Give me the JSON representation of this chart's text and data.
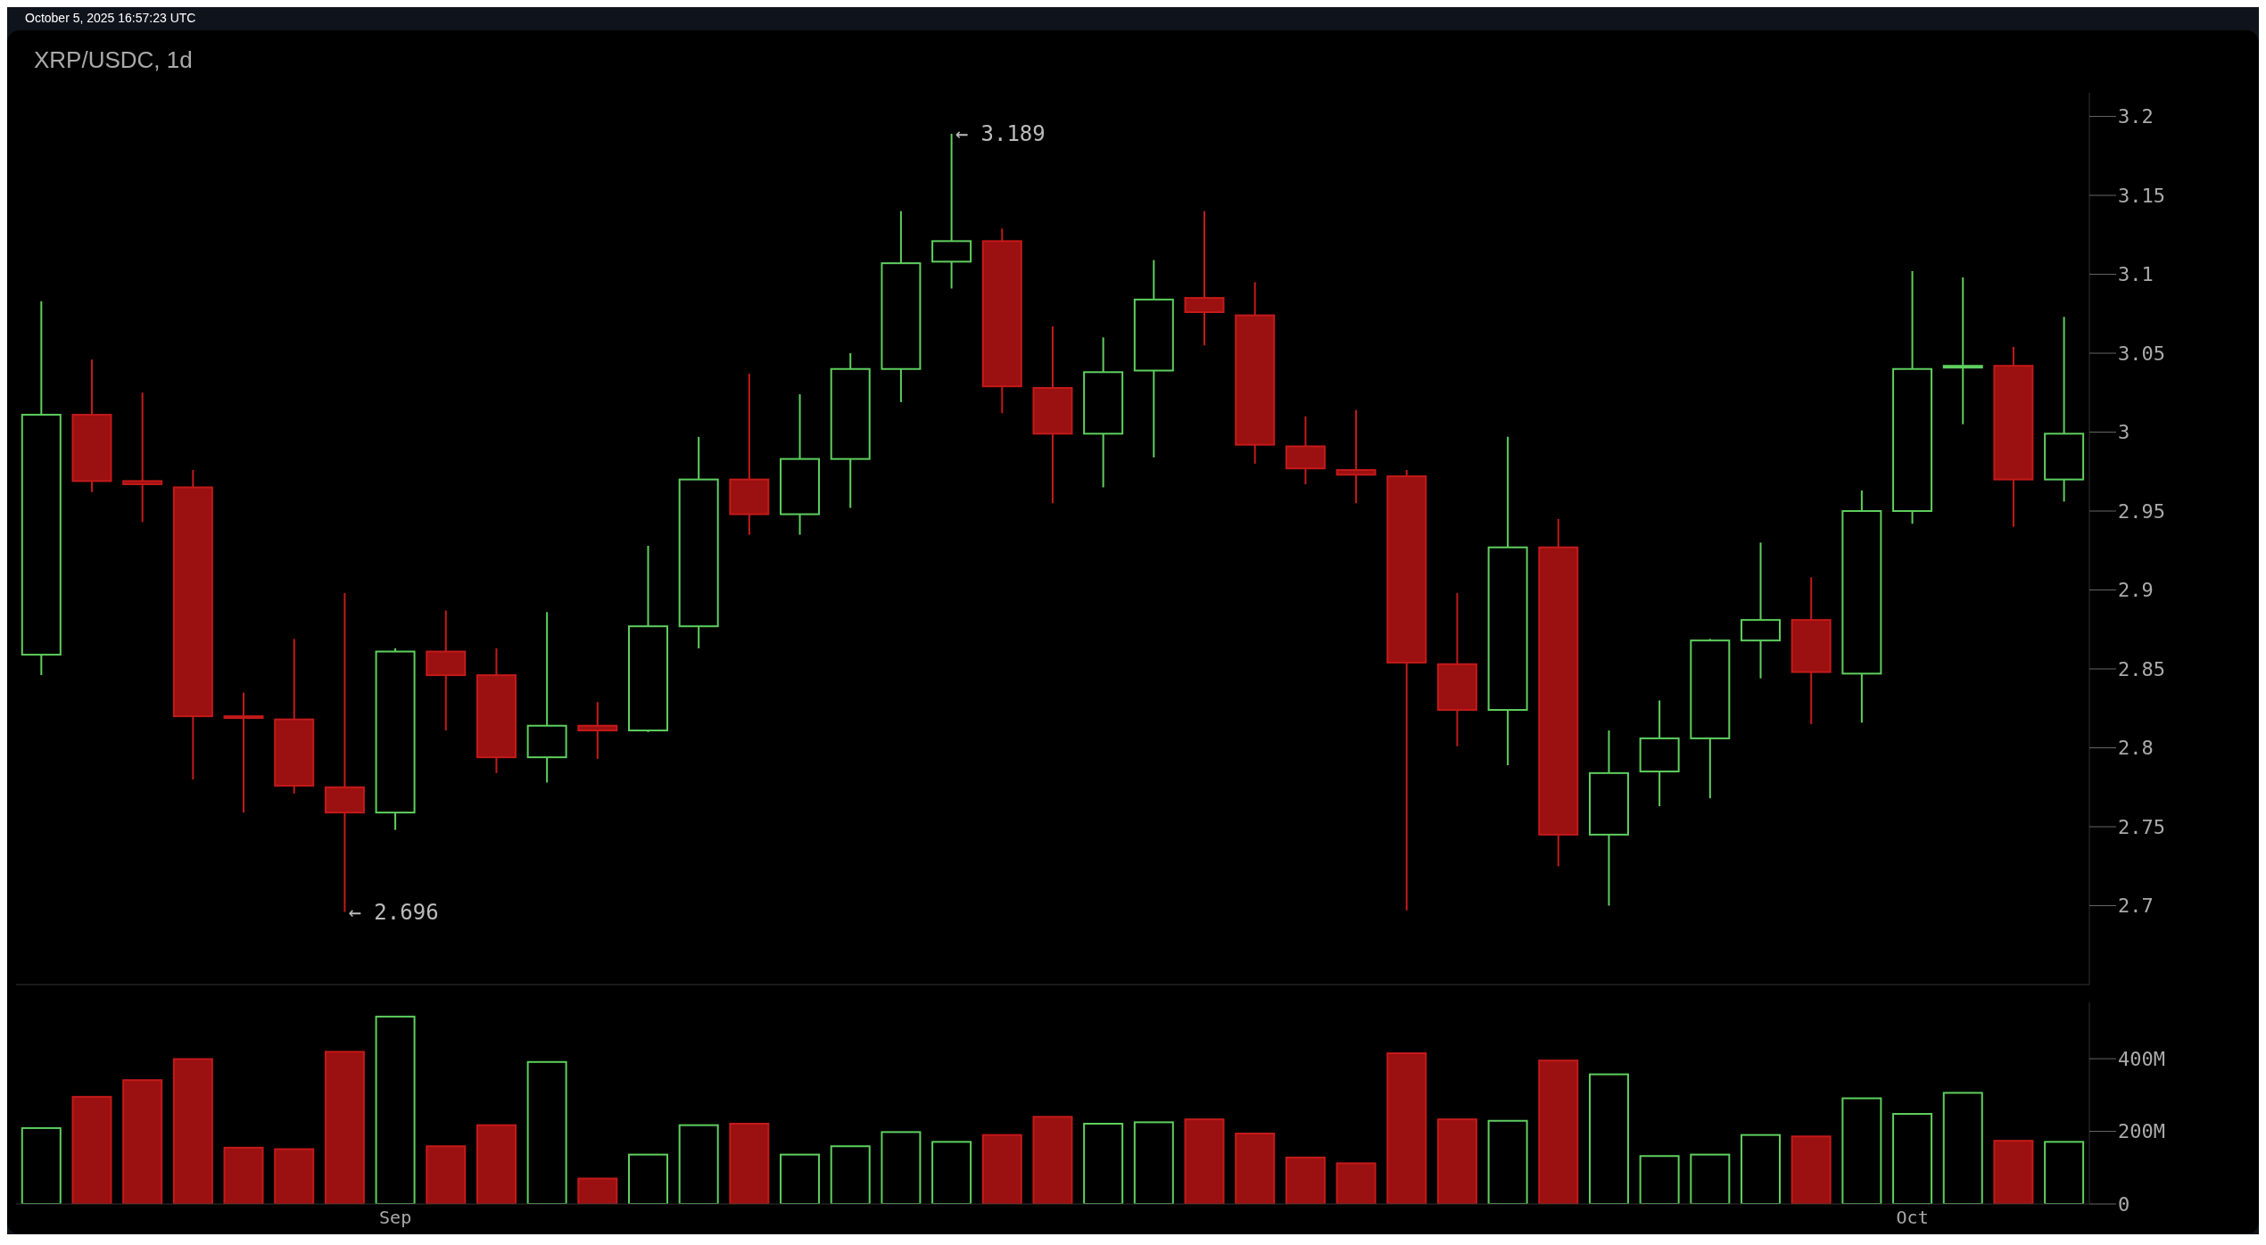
{
  "chart_data": [
    {
      "type": "candlestick",
      "title": "XRP/USDC, 1d",
      "annotations": [
        "October 5, 2025 16:57:23 UTC",
        "← 3.189",
        "← 2.696"
      ],
      "categories": [
        null,
        null,
        null,
        null,
        null,
        null,
        null,
        null,
        null,
        null,
        null,
        null,
        null,
        null,
        null,
        null,
        null,
        null,
        null,
        null,
        null,
        null,
        null,
        null,
        null,
        null,
        null,
        null,
        null,
        null,
        null,
        null,
        null,
        null,
        null,
        null,
        null,
        null,
        null,
        null,
        null
      ],
      "ohlc": [
        [
          2.859,
          3.083,
          2.846,
          3.011
        ],
        [
          3.011,
          3.046,
          2.962,
          2.969
        ],
        [
          2.969,
          3.025,
          2.943,
          2.967
        ],
        [
          2.965,
          2.976,
          2.78,
          2.82
        ],
        [
          2.82,
          2.835,
          2.759,
          2.819
        ],
        [
          2.818,
          2.869,
          2.771,
          2.776
        ],
        [
          2.775,
          2.898,
          2.696,
          2.759
        ],
        [
          2.759,
          2.863,
          2.748,
          2.861
        ],
        [
          2.861,
          2.887,
          2.811,
          2.846
        ],
        [
          2.846,
          2.863,
          2.784,
          2.794
        ],
        [
          2.794,
          2.886,
          2.778,
          2.814
        ],
        [
          2.814,
          2.829,
          2.793,
          2.811
        ],
        [
          2.811,
          2.928,
          2.81,
          2.877
        ],
        [
          2.877,
          2.997,
          2.863,
          2.97
        ],
        [
          2.97,
          3.037,
          2.935,
          2.948
        ],
        [
          2.948,
          3.024,
          2.935,
          2.983
        ],
        [
          2.983,
          3.05,
          2.952,
          3.04
        ],
        [
          3.04,
          3.14,
          3.019,
          3.107
        ],
        [
          3.108,
          3.189,
          3.091,
          3.121
        ],
        [
          3.121,
          3.129,
          3.012,
          3.029
        ],
        [
          3.028,
          3.067,
          2.955,
          2.999
        ],
        [
          2.999,
          3.06,
          2.965,
          3.038
        ],
        [
          3.039,
          3.109,
          2.984,
          3.084
        ],
        [
          3.085,
          3.14,
          3.055,
          3.076
        ],
        [
          3.074,
          3.095,
          2.98,
          2.992
        ],
        [
          2.991,
          3.01,
          2.967,
          2.977
        ],
        [
          2.976,
          3.014,
          2.955,
          2.973
        ],
        [
          2.972,
          2.976,
          2.697,
          2.854
        ],
        [
          2.853,
          2.898,
          2.801,
          2.824
        ],
        [
          2.824,
          2.997,
          2.789,
          2.927
        ],
        [
          2.927,
          2.945,
          2.725,
          2.745
        ],
        [
          2.745,
          2.811,
          2.7,
          2.784
        ],
        [
          2.785,
          2.83,
          2.763,
          2.806
        ],
        [
          2.806,
          2.869,
          2.768,
          2.868
        ],
        [
          2.868,
          2.93,
          2.844,
          2.881
        ],
        [
          2.881,
          2.908,
          2.815,
          2.848
        ],
        [
          2.847,
          2.963,
          2.816,
          2.95
        ],
        [
          2.95,
          3.102,
          2.942,
          3.04
        ],
        [
          3.041,
          3.098,
          3.005,
          3.042
        ],
        [
          3.042,
          3.054,
          2.94,
          2.97
        ],
        [
          2.97,
          3.073,
          2.956,
          2.999
        ]
      ],
      "colors": [
        "#5ecf5e",
        "#9b1010",
        "#9b1010",
        "#9b1010",
        "#9b1010",
        "#9b1010",
        "#9b1010",
        "#5ecf5e",
        "#9b1010",
        "#9b1010",
        "#5ecf5e",
        "#9b1010",
        "#5ecf5e",
        "#5ecf5e",
        "#9b1010",
        "#5ecf5e",
        "#5ecf5e",
        "#5ecf5e",
        "#5ecf5e",
        "#9b1010",
        "#9b1010",
        "#5ecf5e",
        "#5ecf5e",
        "#9b1010",
        "#9b1010",
        "#9b1010",
        "#9b1010",
        "#9b1010",
        "#9b1010",
        "#5ecf5e",
        "#9b1010",
        "#5ecf5e",
        "#5ecf5e",
        "#5ecf5e",
        "#5ecf5e",
        "#9b1010",
        "#5ecf5e",
        "#5ecf5e",
        "#5ecf5e",
        "#9b1010",
        "#5ecf5e"
      ],
      "ylim": [
        2.65,
        3.215
      ],
      "yticks": [
        2.7,
        2.75,
        2.8,
        2.85,
        2.9,
        2.95,
        3,
        3.05,
        3.1,
        3.15,
        3.2
      ],
      "tick_labels": "y",
      "grid": false,
      "legend": false
    },
    {
      "type": "bar",
      "categories": [
        null,
        null,
        null,
        null,
        null,
        null,
        null,
        "Sep",
        null,
        null,
        null,
        null,
        null,
        null,
        null,
        null,
        null,
        null,
        null,
        null,
        null,
        null,
        null,
        null,
        null,
        null,
        null,
        null,
        null,
        null,
        null,
        null,
        null,
        null,
        null,
        null,
        null,
        "Oct",
        null,
        null,
        null
      ],
      "values": [
        209,
        295,
        341,
        399,
        155,
        151,
        419,
        516,
        159,
        217,
        391,
        70,
        136,
        217,
        221,
        136,
        159,
        198,
        171,
        190,
        240,
        221,
        225,
        233,
        194,
        128,
        112,
        415,
        233,
        229,
        395,
        357,
        132,
        136,
        190,
        186,
        291,
        248,
        306,
        174,
        171
      ],
      "colors": [
        "#5ecf5e",
        "#9b1010",
        "#9b1010",
        "#9b1010",
        "#9b1010",
        "#9b1010",
        "#9b1010",
        "#5ecf5e",
        "#9b1010",
        "#9b1010",
        "#5ecf5e",
        "#9b1010",
        "#5ecf5e",
        "#5ecf5e",
        "#9b1010",
        "#5ecf5e",
        "#5ecf5e",
        "#5ecf5e",
        "#5ecf5e",
        "#9b1010",
        "#9b1010",
        "#5ecf5e",
        "#5ecf5e",
        "#9b1010",
        "#9b1010",
        "#9b1010",
        "#9b1010",
        "#9b1010",
        "#9b1010",
        "#5ecf5e",
        "#9b1010",
        "#5ecf5e",
        "#5ecf5e",
        "#5ecf5e",
        "#5ecf5e",
        "#9b1010",
        "#5ecf5e",
        "#5ecf5e",
        "#5ecf5e",
        "#9b1010",
        "#5ecf5e"
      ],
      "ylim": [
        0,
        555
      ],
      "yticks": [
        {
          "value": 0,
          "label": "0"
        },
        {
          "value": 200,
          "label": "200M"
        },
        {
          "value": 400,
          "label": "400M"
        }
      ],
      "grid": false,
      "legend": false
    }
  ]
}
